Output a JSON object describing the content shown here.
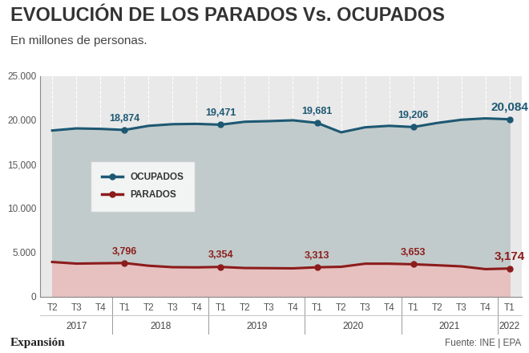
{
  "chart_data": {
    "type": "line",
    "title": "EVOLUCIÓN DE LOS PARADOS Vs. OCUPADOS",
    "subtitle": "En millones de personas.",
    "brand": "Expansión",
    "source": "Fuente: INE | EPA",
    "categories": [
      "T2",
      "T3",
      "T4",
      "T1",
      "T2",
      "T3",
      "T4",
      "T1",
      "T2",
      "T3",
      "T4",
      "T1",
      "T2",
      "T3",
      "T4",
      "T1",
      "T2",
      "T3",
      "T4",
      "T1"
    ],
    "groups": [
      {
        "label": "2017",
        "count": 3
      },
      {
        "label": "2018",
        "count": 4
      },
      {
        "label": "2019",
        "count": 4
      },
      {
        "label": "2020",
        "count": 4
      },
      {
        "label": "2021",
        "count": 4
      },
      {
        "label": "2022",
        "count": 1
      }
    ],
    "series": [
      {
        "name": "OCUPADOS",
        "color": "#1d5872",
        "marker": "o",
        "values": [
          18813,
          19049,
          18998,
          18874,
          19344,
          19528,
          19564,
          19471,
          19805,
          19874,
          19967,
          19681,
          18607,
          19176,
          19344,
          19206,
          19671,
          20031,
          20185,
          20084
        ],
        "value_labels": [
          null,
          null,
          null,
          "18,874",
          null,
          null,
          null,
          "19,471",
          null,
          null,
          null,
          "19,681",
          null,
          null,
          null,
          "19,206",
          null,
          null,
          null,
          "20,084"
        ]
      },
      {
        "name": "PARADOS",
        "color": "#8c1c1c",
        "marker": "o",
        "values": [
          3915,
          3731,
          3767,
          3796,
          3490,
          3326,
          3304,
          3354,
          3231,
          3214,
          3192,
          3313,
          3368,
          3722,
          3720,
          3653,
          3544,
          3417,
          3104,
          3174
        ],
        "value_labels": [
          null,
          null,
          null,
          "3,796",
          null,
          null,
          null,
          "3,354",
          null,
          null,
          null,
          "3,313",
          null,
          null,
          null,
          "3,653",
          null,
          null,
          null,
          "3,174"
        ]
      }
    ],
    "ylim": [
      0,
      25000
    ],
    "yticks": [
      0,
      {
        "value": 5000,
        "label": "5.000"
      },
      {
        "value": 10000,
        "label": "10.000"
      },
      {
        "value": 15000,
        "label": "15,000"
      },
      {
        "value": 20000,
        "label": "20.000"
      },
      {
        "value": 25000,
        "label": "25.000"
      }
    ],
    "grid": true,
    "legend": "center left",
    "data_labels": true
  }
}
